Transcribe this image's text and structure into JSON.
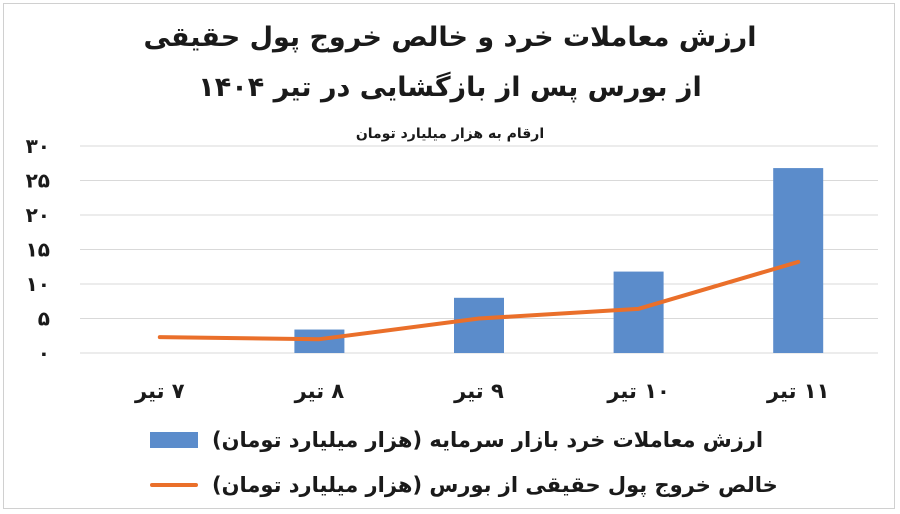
{
  "chart_data": {
    "type": "bar",
    "title_lines": [
      "ارزش معاملات خرد و خالص خروج پول حقیقی",
      "از بورس پس از بازگشایی در تیر ۱۴۰۴"
    ],
    "subtitle": "ارقام به هزار میلیارد تومان",
    "categories": [
      "۷ تیر",
      "۸ تیر",
      "۹ تیر",
      "۱۰ تیر",
      "۱۱ تیر"
    ],
    "ylim": [
      0,
      30
    ],
    "yticks": [
      0,
      5,
      10,
      15,
      20,
      25,
      30
    ],
    "ytick_labels": [
      "۰",
      "۵",
      "۱۰",
      "۱۵",
      "۲۰",
      "۲۵",
      "۳۰"
    ],
    "grid": true,
    "legend_position": "bottom",
    "series": [
      {
        "name": "ارزش معاملات خرد بازار سرمایه (هزار میلیارد تومان)",
        "type": "bar",
        "color": "#5b8ccb",
        "values": [
          0,
          3.4,
          8.0,
          11.8,
          26.8
        ]
      },
      {
        "name": "خالص خروج پول حقیقی از بورس (هزار میلیارد تومان)",
        "type": "line",
        "color": "#ea6f2a",
        "values": [
          2.3,
          2.0,
          5.0,
          6.4,
          13.2
        ]
      }
    ]
  }
}
